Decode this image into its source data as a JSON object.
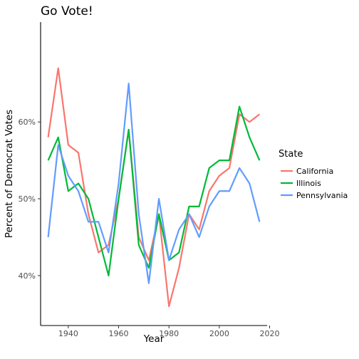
{
  "chart_data": {
    "type": "line",
    "title": "Go Vote!",
    "xlabel": "Year",
    "ylabel": "Percent of Democrat Votes",
    "xlim": [
      1929,
      2019
    ],
    "ylim": [
      0.335,
      0.73
    ],
    "x_ticks": [
      1940,
      1960,
      1980,
      2000,
      2020
    ],
    "x_tick_labels": [
      "1940",
      "1960",
      "1980",
      "2000",
      "2020"
    ],
    "y_ticks": [
      0.4,
      0.5,
      0.6
    ],
    "y_tick_labels": [
      "40%",
      "50%",
      "60%"
    ],
    "grid": false,
    "legend_position": "right",
    "legend_title": "State",
    "x": [
      1932,
      1936,
      1940,
      1944,
      1948,
      1952,
      1956,
      1960,
      1964,
      1968,
      1972,
      1976,
      1980,
      1984,
      1988,
      1992,
      1996,
      2000,
      2004,
      2008,
      2012,
      2016
    ],
    "series": [
      {
        "name": "California",
        "color": "#F8766D",
        "values": [
          0.58,
          0.67,
          0.57,
          0.56,
          0.48,
          0.43,
          0.44,
          0.5,
          0.59,
          0.45,
          0.42,
          0.48,
          0.36,
          0.41,
          0.48,
          0.46,
          0.51,
          0.53,
          0.54,
          0.61,
          0.6,
          0.61
        ]
      },
      {
        "name": "Illinois",
        "color": "#00BA38",
        "values": [
          0.55,
          0.58,
          0.51,
          0.52,
          0.5,
          0.45,
          0.4,
          0.5,
          0.59,
          0.44,
          0.41,
          0.48,
          0.42,
          0.43,
          0.49,
          0.49,
          0.54,
          0.55,
          0.55,
          0.62,
          0.58,
          0.55
        ]
      },
      {
        "name": "Pennsylvania",
        "color": "#619CFF",
        "values": [
          0.45,
          0.57,
          0.53,
          0.51,
          0.47,
          0.47,
          0.43,
          0.52,
          0.65,
          0.48,
          0.39,
          0.5,
          0.42,
          0.46,
          0.48,
          0.45,
          0.49,
          0.51,
          0.51,
          0.54,
          0.52,
          0.47
        ]
      }
    ]
  }
}
